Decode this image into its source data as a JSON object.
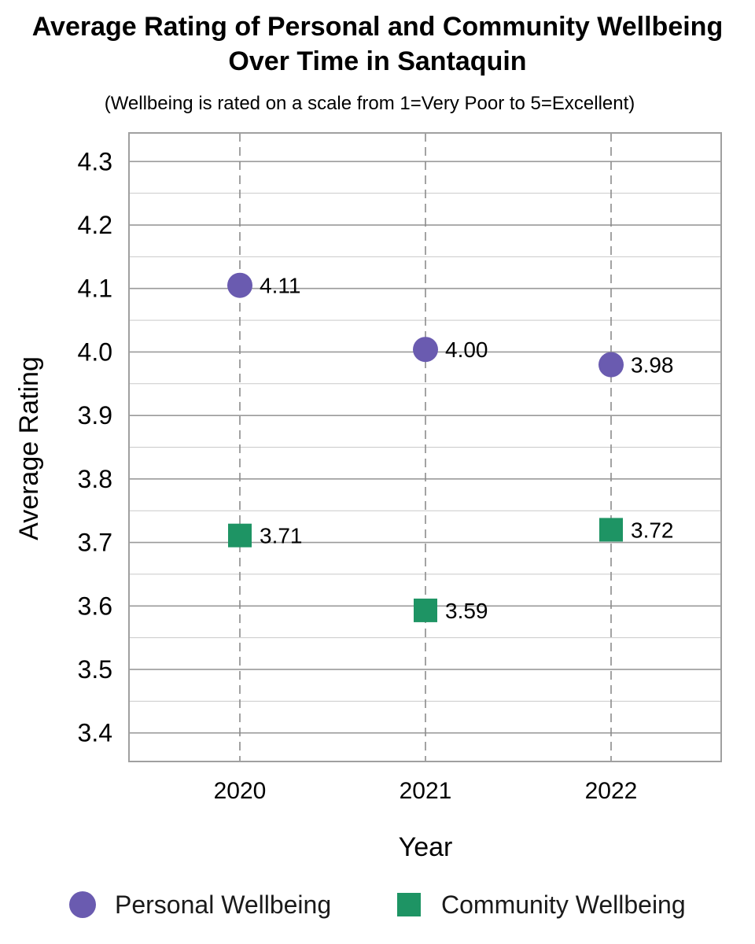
{
  "chart_data": {
    "type": "scatter",
    "title_lines": [
      "Average Rating of Personal and Community Wellbeing",
      "Over Time in Santaquin"
    ],
    "subtitle": "(Wellbeing is rated on a scale from 1=Very Poor to 5=Excellent)",
    "xlabel": "Year",
    "ylabel": "Average Rating",
    "categories": [
      "2020",
      "2021",
      "2022"
    ],
    "ylim": [
      3.355,
      4.345
    ],
    "yticks": [
      "3.4",
      "3.5",
      "3.6",
      "3.7",
      "3.8",
      "3.9",
      "4.0",
      "4.1",
      "4.2",
      "4.3"
    ],
    "grid": true,
    "legend_position": "bottom",
    "series": [
      {
        "name": "Personal Wellbeing",
        "marker": "circle",
        "color": "#6a5bb0",
        "values": [
          4.105,
          4.004,
          3.98
        ],
        "labels": [
          "4.11",
          "4.00",
          "3.98"
        ]
      },
      {
        "name": "Community Wellbeing",
        "marker": "square",
        "color": "#1e9464",
        "values": [
          3.711,
          3.593,
          3.72
        ],
        "labels": [
          "3.71",
          "3.59",
          "3.72"
        ]
      }
    ]
  }
}
